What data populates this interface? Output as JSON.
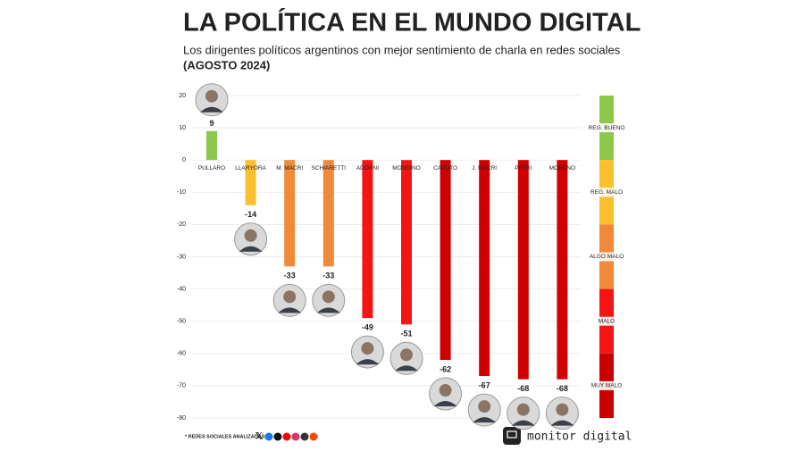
{
  "chart_data": {
    "type": "bar",
    "title": "LA POLÍTICA EN EL MUNDO DIGITAL",
    "subtitle": "Los dirigentes políticos argentinos con mejor sentimiento de charla en redes sociales",
    "subtitle_period": "(AGOSTO 2024)",
    "categories": [
      "PULLARO",
      "LLARYORA",
      "M. MACRI",
      "SCHIARETTI",
      "ADORNI",
      "MONDINO",
      "CAPUTO",
      "J. MACRI",
      "PETRI",
      "MORENO"
    ],
    "values": [
      9,
      -14,
      -33,
      -33,
      -49,
      -51,
      -62,
      -67,
      -68,
      -68
    ],
    "colors": [
      "#8cc84b",
      "#fbc02d",
      "#f0893a",
      "#f0893a",
      "#f41414",
      "#f41414",
      "#d10000",
      "#d10000",
      "#d10000",
      "#d10000"
    ],
    "ylim": [
      -80,
      20
    ],
    "yticks": [
      -80,
      -70,
      -60,
      -50,
      -40,
      -30,
      -20,
      -10,
      0,
      10,
      20
    ],
    "grid": true,
    "scale": [
      {
        "label": "REG. BUENO",
        "from": 20,
        "to": 0,
        "color": "#8cc84b"
      },
      {
        "label": "REG. MALO",
        "from": 0,
        "to": -20,
        "color": "#fbc02d"
      },
      {
        "label": "ALGO MALO",
        "from": -20,
        "to": -40,
        "color": "#f0893a"
      },
      {
        "label": "MALO",
        "from": -40,
        "to": -60,
        "color": "#f41414"
      },
      {
        "label": "MUY MALO",
        "from": -60,
        "to": -80,
        "color": "#c80000"
      }
    ],
    "footnote": "* REDES SOCIALES ANALIZADAS:",
    "brand": "monitor digital"
  }
}
